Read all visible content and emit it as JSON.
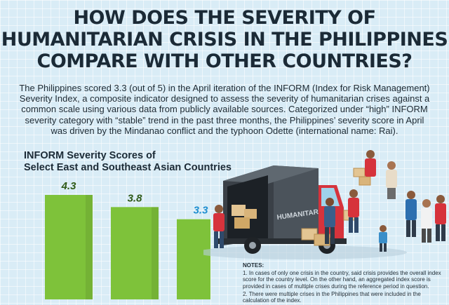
{
  "title_lines": [
    "HOW DOES THE SEVERITY OF",
    "HUMANITARIAN CRISIS IN THE PHILIPPINES",
    "COMPARE WITH OTHER COUNTRIES?"
  ],
  "intro": "The Philippines scored 3.3 (out of 5) in the April iteration of the INFORM (Index for Risk Management) Severity Index, a composite indicator designed to assess the severity of humanitarian crises against a common scale using various data from publicly available sources. Categorized under “high” INFORM severity category with “stable” trend in the past three months, the Philippines’ severity score in April was driven by the Mindanao conflict and the typhoon Odette (international name: Rai).",
  "chart_title_lines": [
    "INFORM Severity Scores of",
    "Select East and Southeast Asian Countries"
  ],
  "chart_data": {
    "type": "bar",
    "title": "INFORM Severity Scores of Select East and Southeast Asian Countries",
    "categories": [
      "",
      "",
      ""
    ],
    "values": [
      4.3,
      3.8,
      3.3
    ],
    "data_labels": [
      "4.3",
      "3.8",
      "3.3"
    ],
    "label_colors": [
      "#2f5a17",
      "#2f5a17",
      "#1f8fd0"
    ],
    "bar_color": "#7ec23a",
    "ylim": [
      0,
      5
    ]
  },
  "illustration": {
    "truck_label": "HUMANITARIAN"
  },
  "notes": {
    "heading": "NOTES:",
    "items": [
      "1. In cases of only one crisis in the country, said crisis provides the overall index score for the country level. On the other hand, an aggregated index score is provided in cases of multiple crises during the reference period in question.",
      "2. There were multiple crises in the Philippines that were included in the calculation of the index."
    ]
  }
}
